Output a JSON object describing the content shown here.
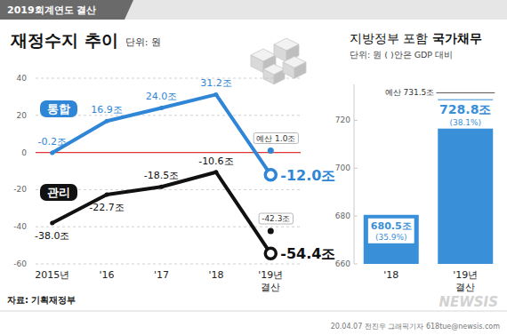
{
  "header": {
    "tag": "2019회계연도 결산"
  },
  "chart_data": [
    {
      "type": "line",
      "title": "재정수지 추이",
      "subtitle": "단위: 원",
      "categories": [
        "2015년",
        "'16",
        "'17",
        "'18",
        "'19년\n결산"
      ],
      "series": [
        {
          "name": "통합",
          "color": "#2f86d6",
          "marker": "circle",
          "values": [
            -0.2,
            16.9,
            24.0,
            31.2,
            -12.0
          ],
          "value_labels": [
            "-0.2조",
            "16.9조",
            "24.0조",
            "31.2조",
            "-12.0조"
          ],
          "budget": {
            "value": 1.0,
            "label": "예산 1.0조"
          }
        },
        {
          "name": "관리",
          "color": "#111111",
          "marker": "circle",
          "values": [
            -38.0,
            -22.7,
            -18.5,
            -10.6,
            -54.4
          ],
          "value_labels": [
            "-38.0조",
            "-22.7조",
            "-18.5조",
            "-10.6조",
            "-54.4조"
          ],
          "budget": {
            "value": -42.3,
            "label": "-42.3조"
          }
        }
      ],
      "ylim": [
        -60,
        40
      ],
      "yticks": [
        -60,
        -40,
        -20,
        0,
        20,
        40
      ],
      "grid": true,
      "data_labels": true
    },
    {
      "type": "bar",
      "title": "지방정부 포함 국가채무",
      "subtitle": "단위: 원 ( )안은 GDP 대비",
      "categories": [
        "'18",
        "'19년\n결산"
      ],
      "values": [
        680.5,
        728.8
      ],
      "value_labels": [
        "680.5조",
        "728.8조"
      ],
      "gdp_ratio": [
        35.9,
        38.1
      ],
      "gdp_ratio_labels": [
        "(35.9%)",
        "(38.1%)"
      ],
      "budget": {
        "value": 731.5,
        "label": "예산 731.5조"
      },
      "color": "#3a8fd9",
      "ylim": [
        660,
        735
      ],
      "yticks": [
        660,
        680,
        700,
        720
      ],
      "grid": false,
      "data_labels": true
    }
  ],
  "source": "자료: 기획재정부",
  "credit": "20.04.07 전진우 그래픽기자 618tue@newsis.com",
  "watermark": "NEWSIS"
}
